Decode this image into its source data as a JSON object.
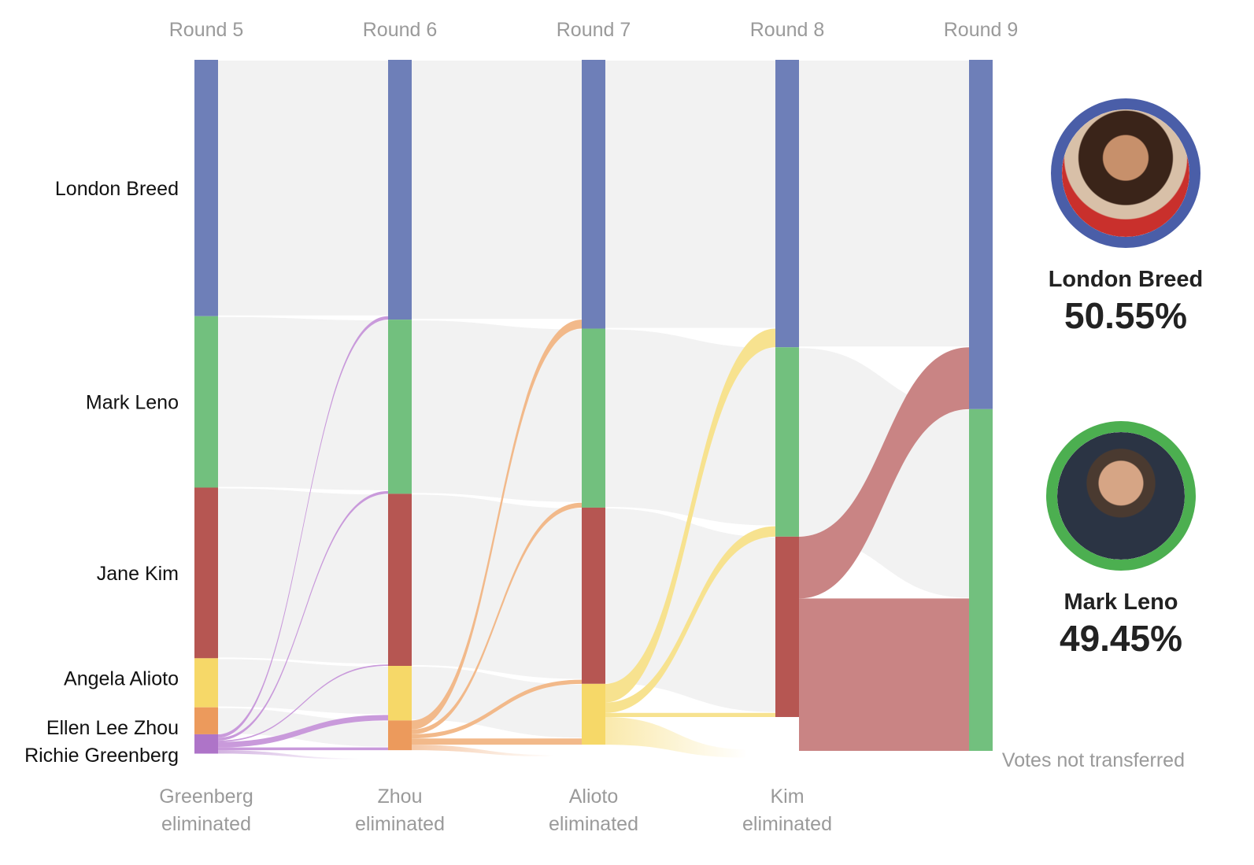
{
  "chart_data": {
    "type": "sankey",
    "rounds": [
      "Round 5",
      "Round 6",
      "Round 7",
      "Round 8",
      "Round 9"
    ],
    "eliminations": [
      {
        "name": "Greenberg",
        "line2": "eliminated"
      },
      {
        "name": "Zhou",
        "line2": "eliminated"
      },
      {
        "name": "Alioto",
        "line2": "eliminated"
      },
      {
        "name": "Kim",
        "line2": "eliminated"
      }
    ],
    "candidates": [
      {
        "name": "London Breed",
        "color": "#6e7fb8"
      },
      {
        "name": "Mark Leno",
        "color": "#72c07e"
      },
      {
        "name": "Jane Kim",
        "color": "#b65652"
      },
      {
        "name": "Angela Alioto",
        "color": "#f6d868"
      },
      {
        "name": "Ellen Lee Zhou",
        "color": "#ec9a5c"
      },
      {
        "name": "Richie Greenberg",
        "color": "#ae74c8"
      }
    ],
    "vote_share_by_round": [
      {
        "round": "Round 5",
        "values": [
          37.1,
          24.8,
          24.7,
          7.1,
          3.9,
          2.8
        ]
      },
      {
        "round": "Round 6",
        "values": [
          37.6,
          25.2,
          24.9,
          7.9,
          4.3,
          0
        ]
      },
      {
        "round": "Round 7",
        "values": [
          38.9,
          25.9,
          25.5,
          8.8,
          0,
          0
        ]
      },
      {
        "round": "Round 8",
        "values": [
          41.6,
          27.4,
          26.1,
          0,
          0,
          0
        ]
      },
      {
        "round": "Round 9",
        "values": [
          50.55,
          49.45,
          0,
          0,
          0,
          0
        ]
      }
    ],
    "not_transferred_label": "Votes not transferred",
    "colors": {
      "flow": "#f2f2f2"
    }
  },
  "winners": [
    {
      "name": "London Breed",
      "pct": "50.55%",
      "ring": "#4a5ea8",
      "icon": "portrait-photo"
    },
    {
      "name": "Mark Leno",
      "pct": "49.45%",
      "ring": "#4caf50",
      "icon": "portrait-photo"
    }
  ]
}
